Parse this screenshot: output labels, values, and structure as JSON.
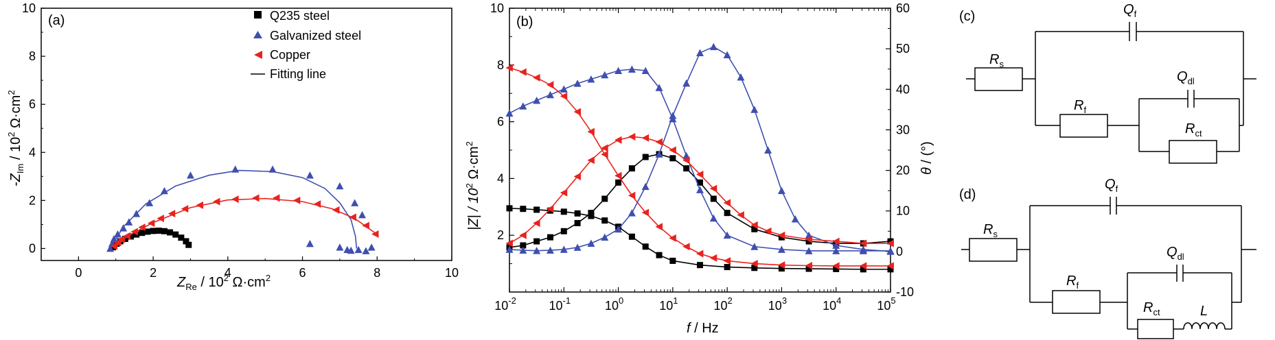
{
  "figure": [
    {
      "panel_label": "(a)",
      "type": "scatter",
      "xlabel": "Z_Re / 10^2 Ω·cm^2",
      "ylabel": "-Z_Im / 10^2 Ω·cm^2",
      "xlim": [
        -1,
        10
      ],
      "ylim": [
        -0.5,
        10
      ],
      "xticks": [
        0,
        2,
        4,
        6,
        8,
        10
      ],
      "yticks": [
        0,
        2,
        4,
        6,
        8,
        10
      ],
      "legend": [
        "Q235 steel",
        "Galvanized steel",
        "Copper",
        "Fitting line"
      ],
      "colors": {
        "q235": "#000000",
        "galv": "#3f4fb0",
        "copper": "#e8231e"
      }
    },
    {
      "panel_label": "(b)",
      "type": "line",
      "xlabel": "f / Hz",
      "ylabel_left": "|Z| / 10^2 Ω·cm^2",
      "ylabel_right": "θ / (°)",
      "xscale": "log",
      "xlim_log10": [
        -2,
        5
      ],
      "ylim_left": [
        0,
        10
      ],
      "ylim_right": [
        -10,
        60
      ]
    }
  ],
  "labels": {
    "a": "(a)",
    "b": "(b)",
    "c": "(c)",
    "d": "(d)",
    "legend": [
      "Q235 steel",
      "Galvanized steel",
      "Copper",
      "Fitting line"
    ],
    "a_xlabel_main": "Z",
    "a_xlabel_sub": "Re",
    "a_xlabel_rest": " / 10",
    "a_xlabel_exp": "2",
    "a_xlabel_unit": " Ω·cm",
    "a_xlabel_exp2": "2",
    "a_ylabel": "-Z",
    "a_ylabel_sub": "Im",
    "a_ylabel_rest": " / 10",
    "a_ylabel_exp": "2",
    "a_ylabel_unit": " Ω·cm",
    "a_ylabel_exp2": "2",
    "b_xlabel_f": "f",
    "b_xlabel_rest": " / Hz",
    "b_ylabel_l": "|Z| / 10",
    "b_ylabel_l_exp": "2",
    "b_ylabel_l_unit": " Ω·cm",
    "b_ylabel_l_exp2": "2",
    "b_ylabel_r": "θ",
    "b_ylabel_r_rest": " / (°)",
    "xticks_a": [
      "0",
      "2",
      "4",
      "6",
      "8",
      "10"
    ],
    "yticks_a": [
      "0",
      "2",
      "4",
      "6",
      "8",
      "10"
    ],
    "yticks_b_left": [
      "2",
      "4",
      "6",
      "8",
      "10"
    ],
    "yticks_b_right": [
      "-10",
      "0",
      "10",
      "20",
      "30",
      "40",
      "50",
      "60"
    ],
    "xticks_b_base": "10",
    "xticks_b_exp": [
      "-2",
      "-1",
      "0",
      "1",
      "2",
      "3",
      "4",
      "5"
    ],
    "circ_c": {
      "Rs": "R",
      "Rs_sub": "s",
      "Qf": "Q",
      "Qf_sub": "f",
      "Qdl": "Q",
      "Qdl_sub": "dl",
      "Rf": "R",
      "Rf_sub": "f",
      "Rct": "R",
      "Rct_sub": "ct"
    },
    "circ_d": {
      "Rs": "R",
      "Rs_sub": "s",
      "Qf": "Q",
      "Qf_sub": "f",
      "Qdl": "Q",
      "Qdl_sub": "dl",
      "Rf": "R",
      "Rf_sub": "f",
      "Rct": "R",
      "Rct_sub": "ct",
      "L": "L"
    }
  },
  "chart_data": [
    {
      "type": "scatter",
      "panel": "(a)",
      "xlabel": "Z_Re / 10^2 Ω·cm^2",
      "ylabel": "-Z_Im / 10^2 Ω·cm^2",
      "xlim": [
        -1,
        10
      ],
      "ylim": [
        -0.5,
        10
      ],
      "series": [
        {
          "name": "Q235 steel",
          "marker": "square",
          "color": "#000000",
          "points": [
            [
              0.92,
              0.05
            ],
            [
              1.02,
              0.2
            ],
            [
              1.12,
              0.3
            ],
            [
              1.25,
              0.4
            ],
            [
              1.4,
              0.5
            ],
            [
              1.55,
              0.58
            ],
            [
              1.7,
              0.65
            ],
            [
              1.85,
              0.7
            ],
            [
              2.0,
              0.73
            ],
            [
              2.15,
              0.74
            ],
            [
              2.3,
              0.72
            ],
            [
              2.45,
              0.67
            ],
            [
              2.6,
              0.58
            ],
            [
              2.75,
              0.45
            ],
            [
              2.88,
              0.3
            ],
            [
              2.95,
              0.15
            ]
          ],
          "fit": [
            [
              0.88,
              0.0
            ],
            [
              1.0,
              0.18
            ],
            [
              1.2,
              0.38
            ],
            [
              1.5,
              0.56
            ],
            [
              1.8,
              0.68
            ],
            [
              2.1,
              0.73
            ],
            [
              2.4,
              0.68
            ],
            [
              2.7,
              0.52
            ],
            [
              2.9,
              0.3
            ],
            [
              2.98,
              0.1
            ]
          ]
        },
        {
          "name": "Galvanized steel",
          "marker": "triangle-up",
          "color": "#3f4fb0",
          "points": [
            [
              0.85,
              0.0
            ],
            [
              0.9,
              0.2
            ],
            [
              0.95,
              0.4
            ],
            [
              1.05,
              0.6
            ],
            [
              1.2,
              0.85
            ],
            [
              1.35,
              1.1
            ],
            [
              1.55,
              1.45
            ],
            [
              1.9,
              1.9
            ],
            [
              2.3,
              2.4
            ],
            [
              3.0,
              3.05
            ],
            [
              4.2,
              3.3
            ],
            [
              5.2,
              3.3
            ],
            [
              6.2,
              3.05
            ],
            [
              7.0,
              2.6
            ],
            [
              7.4,
              1.9
            ],
            [
              7.6,
              1.4
            ],
            [
              6.2,
              0.2
            ],
            [
              7.0,
              0.05
            ],
            [
              7.2,
              -0.05
            ],
            [
              7.3,
              -0.08
            ],
            [
              7.5,
              -0.05
            ],
            [
              7.7,
              -0.1
            ],
            [
              7.85,
              0.05
            ]
          ],
          "fit": [
            [
              0.85,
              0.0
            ],
            [
              1.2,
              0.9
            ],
            [
              1.8,
              1.85
            ],
            [
              2.6,
              2.6
            ],
            [
              3.5,
              3.05
            ],
            [
              4.3,
              3.25
            ],
            [
              5.2,
              3.2
            ],
            [
              6.0,
              2.95
            ],
            [
              6.6,
              2.5
            ],
            [
              7.0,
              1.9
            ],
            [
              7.3,
              1.2
            ],
            [
              7.42,
              0.5
            ],
            [
              7.45,
              0.0
            ]
          ]
        },
        {
          "name": "Copper",
          "marker": "triangle-left",
          "color": "#e8231e",
          "points": [
            [
              0.95,
              0.1
            ],
            [
              1.05,
              0.25
            ],
            [
              1.15,
              0.38
            ],
            [
              1.3,
              0.52
            ],
            [
              1.5,
              0.7
            ],
            [
              1.7,
              0.88
            ],
            [
              1.95,
              1.05
            ],
            [
              2.2,
              1.25
            ],
            [
              2.5,
              1.45
            ],
            [
              2.85,
              1.65
            ],
            [
              3.25,
              1.8
            ],
            [
              3.7,
              1.95
            ],
            [
              4.2,
              2.05
            ],
            [
              4.75,
              2.1
            ],
            [
              5.3,
              2.1
            ],
            [
              5.85,
              2.0
            ],
            [
              6.4,
              1.85
            ],
            [
              6.9,
              1.6
            ],
            [
              7.35,
              1.3
            ],
            [
              7.7,
              0.95
            ],
            [
              7.95,
              0.6
            ]
          ],
          "fit": [
            [
              0.95,
              0.0
            ],
            [
              1.3,
              0.5
            ],
            [
              2.0,
              1.08
            ],
            [
              3.0,
              1.7
            ],
            [
              4.0,
              2.02
            ],
            [
              5.0,
              2.08
            ],
            [
              6.0,
              1.95
            ],
            [
              6.8,
              1.65
            ],
            [
              7.4,
              1.25
            ],
            [
              7.9,
              0.7
            ],
            [
              8.0,
              0.55
            ]
          ]
        }
      ]
    },
    {
      "type": "line",
      "panel": "(b)",
      "xlabel": "f / Hz",
      "xscale": "log",
      "xlim_log10": [
        -2,
        5
      ],
      "ylabel_left": "|Z| / 10^2 Ω·cm^2",
      "ylim_left": [
        0,
        10
      ],
      "ylabel_right": "θ / (°)",
      "ylim_right": [
        -10,
        60
      ],
      "series": [
        {
          "name": "Q235 steel |Z|",
          "axis": "left",
          "marker": "square",
          "color": "#000000",
          "log10f": [
            -2,
            -1.75,
            -1.5,
            -1.25,
            -1,
            -0.75,
            -0.5,
            -0.25,
            0,
            0.25,
            0.5,
            0.75,
            1,
            1.5,
            2,
            2.5,
            3,
            3.5,
            4,
            4.5,
            5
          ],
          "y": [
            2.95,
            2.93,
            2.9,
            2.87,
            2.83,
            2.77,
            2.68,
            2.52,
            2.3,
            1.95,
            1.6,
            1.3,
            1.1,
            0.95,
            0.88,
            0.85,
            0.83,
            0.82,
            0.81,
            0.8,
            0.8
          ]
        },
        {
          "name": "Q235 steel θ",
          "axis": "right",
          "marker": "square",
          "color": "#000000",
          "log10f": [
            -2,
            -1.75,
            -1.5,
            -1.25,
            -1,
            -0.75,
            -0.5,
            -0.25,
            0,
            0.25,
            0.5,
            0.75,
            1,
            1.25,
            1.5,
            1.75,
            2,
            2.5,
            3,
            3.5,
            4,
            4.5,
            5
          ],
          "y": [
            1.0,
            1.5,
            2.5,
            3.5,
            5.0,
            7.0,
            9.5,
            13.0,
            17.0,
            20.5,
            23.3,
            24.0,
            23.0,
            20.5,
            17.0,
            13.0,
            9.5,
            5.5,
            3.5,
            2.5,
            2.0,
            2.0,
            2.5
          ]
        },
        {
          "name": "Galvanized steel |Z|",
          "axis": "left",
          "marker": "triangle-up",
          "color": "#3f4fb0",
          "log10f": [
            -2,
            -1.75,
            -1.5,
            -1.25,
            -1,
            -0.75,
            -0.5,
            -0.25,
            0,
            0.25,
            0.5,
            0.75,
            1,
            1.25,
            1.5,
            1.75,
            2,
            2.5,
            3,
            3.5,
            4,
            4.5,
            5
          ],
          "y": [
            6.3,
            6.55,
            6.75,
            6.95,
            7.15,
            7.35,
            7.5,
            7.65,
            7.8,
            7.85,
            7.8,
            7.2,
            6.1,
            4.8,
            3.6,
            2.6,
            2.0,
            1.6,
            1.5,
            1.45,
            1.45,
            1.45,
            1.45
          ]
        },
        {
          "name": "Galvanized steel θ",
          "axis": "right",
          "marker": "triangle-up",
          "color": "#3f4fb0",
          "log10f": [
            -2,
            -1.75,
            -1.5,
            -1.25,
            -1,
            -0.75,
            -0.5,
            -0.25,
            0,
            0.25,
            0.5,
            0.75,
            1,
            1.25,
            1.5,
            1.75,
            2,
            2.25,
            2.5,
            2.75,
            3,
            3.25,
            3.5,
            4,
            4.5,
            5
          ],
          "y": [
            0.5,
            0.3,
            0.2,
            0.3,
            0.5,
            1.0,
            2.0,
            3.5,
            5.5,
            9.5,
            16.0,
            24.0,
            33.5,
            41.5,
            49.0,
            50.5,
            48.5,
            43.0,
            35.0,
            25.0,
            15.0,
            8.0,
            4.0,
            1.5,
            0.5,
            0.0
          ]
        },
        {
          "name": "Copper |Z|",
          "axis": "left",
          "marker": "triangle-left",
          "color": "#e8231e",
          "log10f": [
            -2,
            -1.75,
            -1.5,
            -1.25,
            -1,
            -0.75,
            -0.5,
            -0.25,
            0,
            0.25,
            0.5,
            0.75,
            1,
            1.25,
            1.5,
            1.75,
            2,
            2.5,
            3,
            3.5,
            4,
            4.5,
            5
          ],
          "y": [
            7.9,
            7.75,
            7.55,
            7.3,
            6.9,
            6.35,
            5.65,
            4.85,
            4.1,
            3.4,
            2.8,
            2.3,
            1.9,
            1.6,
            1.35,
            1.2,
            1.1,
            1.0,
            0.95,
            0.93,
            0.92,
            0.92,
            0.92
          ]
        },
        {
          "name": "Copper θ",
          "axis": "right",
          "marker": "triangle-left",
          "color": "#e8231e",
          "log10f": [
            -2,
            -1.75,
            -1.5,
            -1.25,
            -1,
            -0.75,
            -0.5,
            -0.25,
            0,
            0.25,
            0.5,
            0.75,
            1,
            1.25,
            1.5,
            1.75,
            2,
            2.25,
            2.5,
            2.75,
            3,
            3.5,
            4,
            4.5,
            5
          ],
          "y": [
            2.0,
            4.0,
            7.0,
            10.5,
            14.5,
            18.5,
            22.5,
            25.5,
            27.5,
            28.3,
            28.0,
            27.0,
            25.0,
            22.5,
            19.0,
            15.5,
            12.0,
            9.0,
            6.5,
            5.0,
            4.0,
            3.0,
            2.5,
            2.0,
            2.0
          ]
        }
      ]
    }
  ]
}
